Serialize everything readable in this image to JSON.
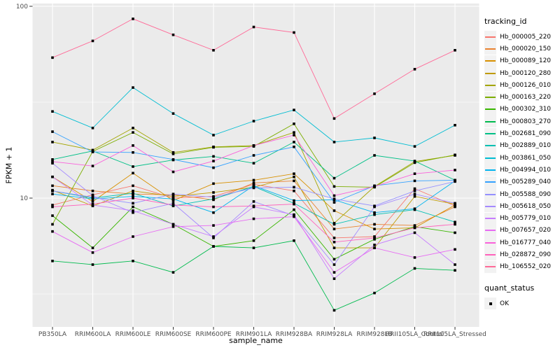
{
  "chart_data": {
    "type": "line",
    "title": "",
    "xlabel": "sample_name",
    "ylabel": "FPKM + 1",
    "y_scale": "log10",
    "ylim": [
      2.1,
      103
    ],
    "y_tick_labels": [
      "10",
      "100"
    ],
    "y_ticks": [
      10,
      100
    ],
    "y_minor_ticks": [
      3.162,
      31.62
    ],
    "grid": "on",
    "panel_bg": "#EBEBEB",
    "grid_color": "#FFFFFF",
    "tick_text_color": "#4D4D4D",
    "point_marker": "black-square",
    "legend_title": "tracking_id",
    "legend_position": "right",
    "point_legend": {
      "title": "quant_status",
      "items": [
        {
          "label": "OK"
        }
      ]
    },
    "categories": [
      "PB350LA",
      "RRIM600LA",
      "RRIM600LE",
      "RRIM600SE",
      "RRIM600PE",
      "RRIM901LA",
      "RRIM928BA",
      "RRIM928LA",
      "RRIM928LB",
      "RRII105LA_Control",
      "RRII105LA_Stressed"
    ],
    "series": [
      {
        "name": "Hb_000005_220",
        "color": "#F8766D",
        "values": [
          9.2,
          10.4,
          11.6,
          10.0,
          10.2,
          11.8,
          10.9,
          6.2,
          6.3,
          11.2,
          9.1
        ]
      },
      {
        "name": "Hb_000020_150",
        "color": "#EA8331",
        "values": [
          11.6,
          10.9,
          10.5,
          10.4,
          9.8,
          12.0,
          12.3,
          6.9,
          7.3,
          7.2,
          9.0
        ]
      },
      {
        "name": "Hb_000089_120",
        "color": "#D89000",
        "values": [
          12.9,
          9.6,
          13.5,
          9.7,
          11.9,
          12.4,
          13.4,
          8.6,
          6.9,
          7.0,
          9.2
        ]
      },
      {
        "name": "Hb_000120_280",
        "color": "#C09B00",
        "values": [
          11.0,
          9.1,
          10.9,
          10.2,
          10.7,
          11.4,
          12.9,
          5.5,
          5.5,
          10.2,
          9.3
        ]
      },
      {
        "name": "Hb_000126_010",
        "color": "#A3A500",
        "values": [
          19.6,
          17.8,
          23.2,
          17.3,
          18.5,
          18.8,
          22.0,
          7.4,
          11.5,
          15.5,
          16.7
        ]
      },
      {
        "name": "Hb_000163_220",
        "color": "#7CAE00",
        "values": [
          7.3,
          17.5,
          22.0,
          17.0,
          18.4,
          18.6,
          24.4,
          11.5,
          11.4,
          15.3,
          16.8
        ]
      },
      {
        "name": "Hb_000302_310",
        "color": "#39B600",
        "values": [
          8.1,
          5.5,
          9.0,
          7.3,
          5.6,
          6.0,
          8.7,
          4.8,
          6.1,
          7.1,
          6.6
        ]
      },
      {
        "name": "Hb_000803_270",
        "color": "#00BB4E",
        "values": [
          4.7,
          4.5,
          4.7,
          4.1,
          5.6,
          5.5,
          6.0,
          2.6,
          3.2,
          4.3,
          4.2
        ]
      },
      {
        "name": "Hb_002681_090",
        "color": "#00C087",
        "values": [
          15.9,
          17.6,
          14.6,
          15.8,
          16.5,
          15.2,
          19.6,
          12.7,
          16.7,
          15.6,
          12.4
        ]
      },
      {
        "name": "Hb_002889_010",
        "color": "#00C0B2",
        "values": [
          10.9,
          10.0,
          10.6,
          9.1,
          9.9,
          11.5,
          9.4,
          7.3,
          8.2,
          8.7,
          7.5
        ]
      },
      {
        "name": "Hb_003861_050",
        "color": "#00BDD2",
        "values": [
          28.3,
          23.2,
          37.7,
          27.6,
          21.3,
          25.2,
          28.8,
          19.6,
          20.6,
          18.6,
          24.0
        ]
      },
      {
        "name": "Hb_004994_010",
        "color": "#00B4EF",
        "values": [
          10.5,
          9.9,
          10.2,
          9.9,
          8.4,
          11.6,
          9.7,
          9.8,
          8.4,
          8.8,
          12.3
        ]
      },
      {
        "name": "Hb_005289_040",
        "color": "#35A2FF",
        "values": [
          22.2,
          17.4,
          17.3,
          15.9,
          14.4,
          16.7,
          18.5,
          9.5,
          11.6,
          12.3,
          12.4
        ]
      },
      {
        "name": "Hb_005588_090",
        "color": "#9590FF",
        "values": [
          10.9,
          10.1,
          9.4,
          10.5,
          10.1,
          11.3,
          11.4,
          9.9,
          9.1,
          10.9,
          12.2
        ]
      },
      {
        "name": "Hb_005618_050",
        "color": "#A58AFF",
        "values": [
          15.2,
          10.3,
          8.4,
          9.4,
          6.2,
          9.6,
          8.1,
          4.5,
          9.0,
          10.5,
          9.4
        ]
      },
      {
        "name": "Hb_005779_010",
        "color": "#C77CFF",
        "values": [
          12.9,
          9.2,
          8.6,
          7.3,
          6.3,
          9.0,
          8.2,
          3.8,
          5.7,
          6.6,
          4.5
        ]
      },
      {
        "name": "Hb_007657_020",
        "color": "#E76BF3",
        "values": [
          6.7,
          5.2,
          6.3,
          7.1,
          7.2,
          7.8,
          8.0,
          4.1,
          5.5,
          4.9,
          5.4
        ]
      },
      {
        "name": "Hb_016777_040",
        "color": "#FA62DB",
        "values": [
          15.5,
          14.7,
          18.8,
          13.7,
          15.6,
          18.8,
          21.3,
          10.3,
          11.5,
          13.4,
          14.0
        ]
      },
      {
        "name": "Hb_028872_090",
        "color": "#FF62BC",
        "values": [
          9.0,
          9.3,
          10.0,
          9.2,
          9.0,
          9.1,
          9.3,
          5.9,
          6.2,
          7.0,
          7.3
        ]
      },
      {
        "name": "Hb_106552_020",
        "color": "#FF6A98",
        "values": [
          54,
          66,
          86,
          71,
          59,
          78,
          73,
          26,
          35,
          47,
          59
        ]
      }
    ]
  }
}
